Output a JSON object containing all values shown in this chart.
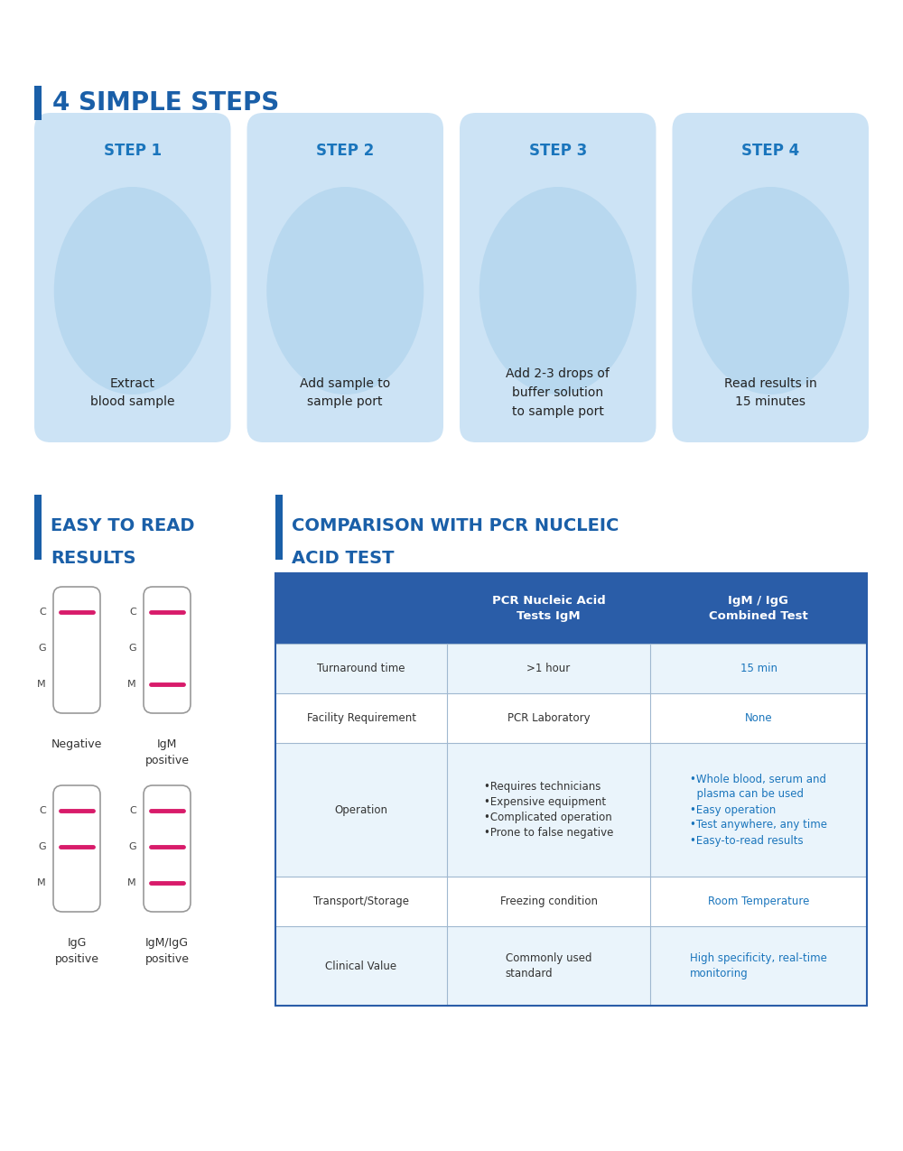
{
  "bg_color": "#ffffff",
  "blue_accent": "#1a5fa8",
  "light_blue_bg": "#cce3f5",
  "table_header_bg": "#2a5da8",
  "step_label_color": "#1a75bc",
  "pink_line": "#d81b6a",
  "section_bar_color": "#1a5fa8",
  "title1": "4 SIMPLE STEPS",
  "steps": [
    {
      "label": "STEP 1",
      "desc": "Extract\nblood sample"
    },
    {
      "label": "STEP 2",
      "desc": "Add sample to\nsample port"
    },
    {
      "label": "STEP 3",
      "desc": "Add 2-3 drops of\nbuffer solution\nto sample port"
    },
    {
      "label": "STEP 4",
      "desc": "Read results in\n15 minutes"
    }
  ],
  "table_headers": [
    "",
    "PCR Nucleic Acid\nTests IgM",
    "IgM / IgG\nCombined Test"
  ],
  "table_rows": [
    {
      "label": "Turnaround time",
      "pcr": ">1 hour",
      "igm": "15 min",
      "igm_color": "#1a75bc"
    },
    {
      "label": "Facility Requirement",
      "pcr": "PCR Laboratory",
      "igm": "None",
      "igm_color": "#1a75bc"
    },
    {
      "label": "Operation",
      "pcr": "•Requires technicians\n•Expensive equipment\n•Complicated operation\n•Prone to false negative",
      "igm": "•Whole blood, serum and\n  plasma can be used\n•Easy operation\n•Test anywhere, any time\n•Easy-to-read results",
      "igm_color": "#1a75bc"
    },
    {
      "label": "Transport/Storage",
      "pcr": "Freezing condition",
      "igm": "Room Temperature",
      "igm_color": "#1a75bc"
    },
    {
      "label": "Clinical Value",
      "pcr": "Commonly used\nstandard",
      "igm": "High specificity, real-time\nmonitoring",
      "igm_color": "#1a75bc"
    }
  ]
}
